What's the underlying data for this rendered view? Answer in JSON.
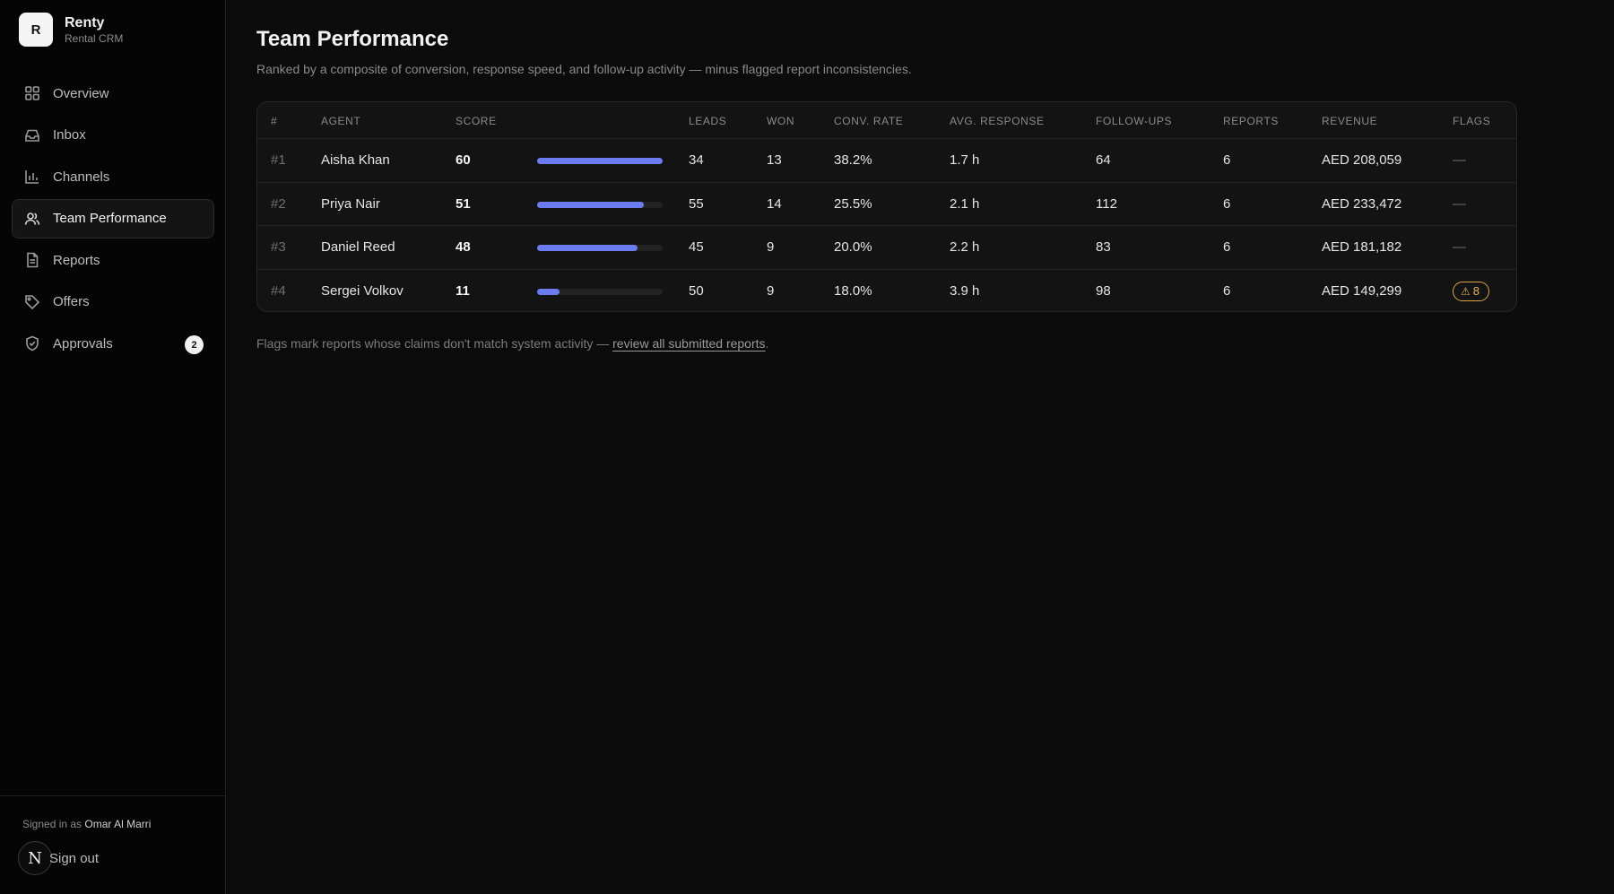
{
  "brand": {
    "logo_letter": "R",
    "name": "Renty",
    "subtitle": "Rental CRM"
  },
  "sidebar": {
    "items": [
      {
        "label": "Overview",
        "icon": "grid-icon"
      },
      {
        "label": "Inbox",
        "icon": "inbox-icon"
      },
      {
        "label": "Channels",
        "icon": "bar-chart-icon"
      },
      {
        "label": "Team Performance",
        "icon": "users-icon",
        "active": true
      },
      {
        "label": "Reports",
        "icon": "document-icon"
      },
      {
        "label": "Offers",
        "icon": "tag-icon"
      },
      {
        "label": "Approvals",
        "icon": "shield-check-icon",
        "badge": "2"
      }
    ],
    "footer": {
      "signed_in_prefix": "Signed in as",
      "user_name": "Omar Al Marri",
      "avatar_letter": "N",
      "signout_label": "Sign out"
    }
  },
  "page": {
    "title": "Team Performance",
    "subtitle": "Ranked by a composite of conversion, response speed, and follow-up activity — minus flagged report inconsistencies."
  },
  "table": {
    "headers": [
      "#",
      "AGENT",
      "SCORE",
      "LEADS",
      "WON",
      "CONV. RATE",
      "AVG. RESPONSE",
      "FOLLOW-UPS",
      "REPORTS",
      "REVENUE",
      "FLAGS"
    ],
    "rows": [
      {
        "rank": "#1",
        "agent": "Aisha Khan",
        "score": "60",
        "score_fraction": 1.0,
        "leads": "34",
        "won": "13",
        "conv_rate": "38.2%",
        "avg_response": "1.7 h",
        "follow_ups": "64",
        "reports": "6",
        "revenue": "AED 208,059",
        "flags": "—"
      },
      {
        "rank": "#2",
        "agent": "Priya Nair",
        "score": "51",
        "score_fraction": 0.85,
        "leads": "55",
        "won": "14",
        "conv_rate": "25.5%",
        "avg_response": "2.1 h",
        "follow_ups": "112",
        "reports": "6",
        "revenue": "AED 233,472",
        "flags": "—"
      },
      {
        "rank": "#3",
        "agent": "Daniel Reed",
        "score": "48",
        "score_fraction": 0.8,
        "leads": "45",
        "won": "9",
        "conv_rate": "20.0%",
        "avg_response": "2.2 h",
        "follow_ups": "83",
        "reports": "6",
        "revenue": "AED 181,182",
        "flags": "—"
      },
      {
        "rank": "#4",
        "agent": "Sergei Volkov",
        "score": "11",
        "score_fraction": 0.18,
        "leads": "50",
        "won": "9",
        "conv_rate": "18.0%",
        "avg_response": "3.9 h",
        "follow_ups": "98",
        "reports": "6",
        "revenue": "AED 149,299",
        "flags": "8",
        "flag_warning": true
      }
    ]
  },
  "footnote": {
    "text": "Flags mark reports whose claims don't match system activity —",
    "link": "review all submitted reports",
    "suffix": "."
  },
  "colors": {
    "accent": "#6b7cf0",
    "warning": "#e7b55a",
    "background": "#0b0b0b"
  }
}
